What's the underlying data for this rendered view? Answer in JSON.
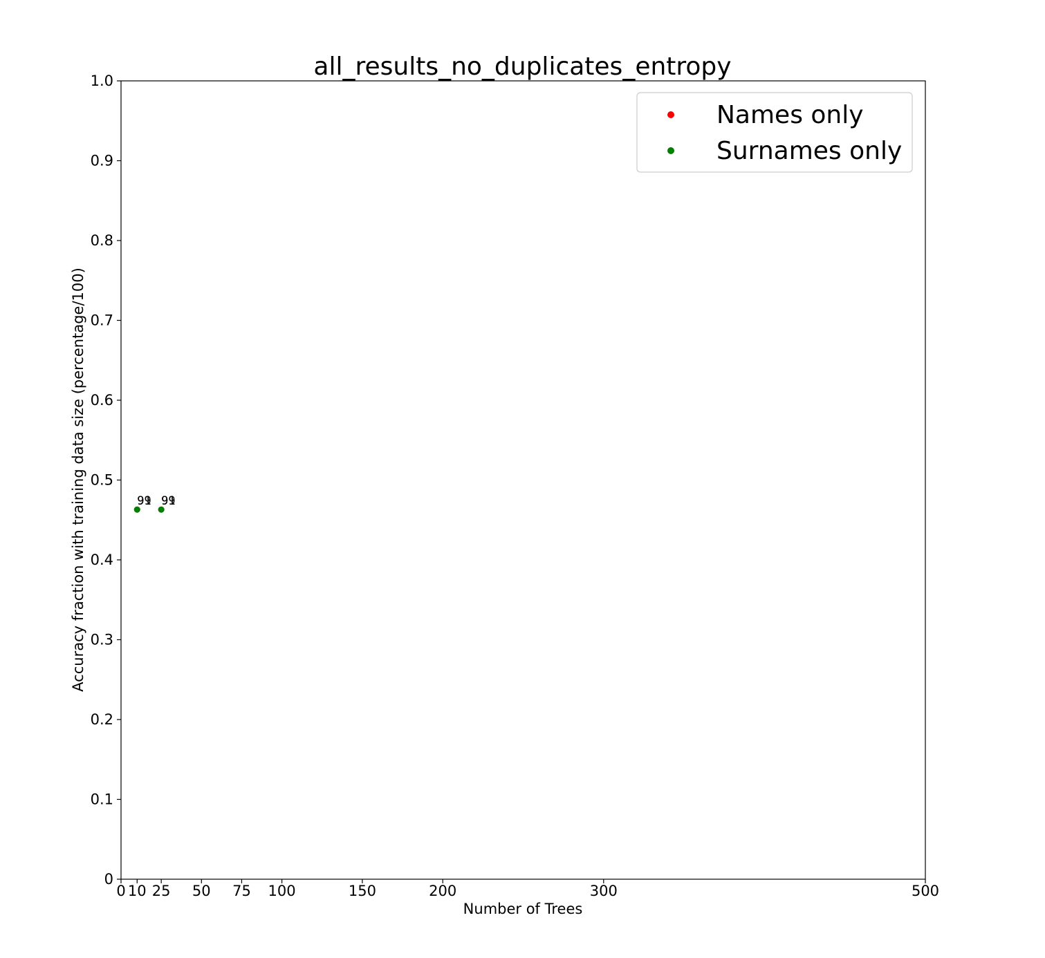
{
  "chart_data": {
    "type": "scatter",
    "title": "all_results_no_duplicates_entropy",
    "xlabel": "Number of Trees",
    "ylabel": "Accuracy fraction with training data size (percentage/100)",
    "xlim": [
      0,
      500
    ],
    "ylim": [
      0,
      1.0
    ],
    "x_ticks": [
      0,
      10,
      25,
      50,
      75,
      100,
      150,
      200,
      300,
      500
    ],
    "x_tick_labels": [
      "0",
      "10",
      "25",
      "50",
      "75",
      "100",
      "150",
      "200",
      "300",
      "500"
    ],
    "y_ticks": [
      0,
      0.1,
      0.2,
      0.3,
      0.4,
      0.5,
      0.6,
      0.7,
      0.8,
      0.9,
      1.0
    ],
    "y_tick_labels": [
      "0",
      "0.1",
      "0.2",
      "0.3",
      "0.4",
      "0.5",
      "0.6",
      "0.7",
      "0.8",
      "0.9",
      "1.0"
    ],
    "grid": false,
    "legend_position": "top-right",
    "series": [
      {
        "name": "Names only",
        "color": "#ff0000",
        "points": [
          {
            "x": 10,
            "y": 0.463,
            "label": "99"
          },
          {
            "x": 25,
            "y": 0.463,
            "label": "99"
          }
        ]
      },
      {
        "name": "Surnames only",
        "color": "#008000",
        "points": [
          {
            "x": 10,
            "y": 0.463,
            "label": "91"
          },
          {
            "x": 25,
            "y": 0.463,
            "label": "91"
          }
        ]
      }
    ]
  }
}
